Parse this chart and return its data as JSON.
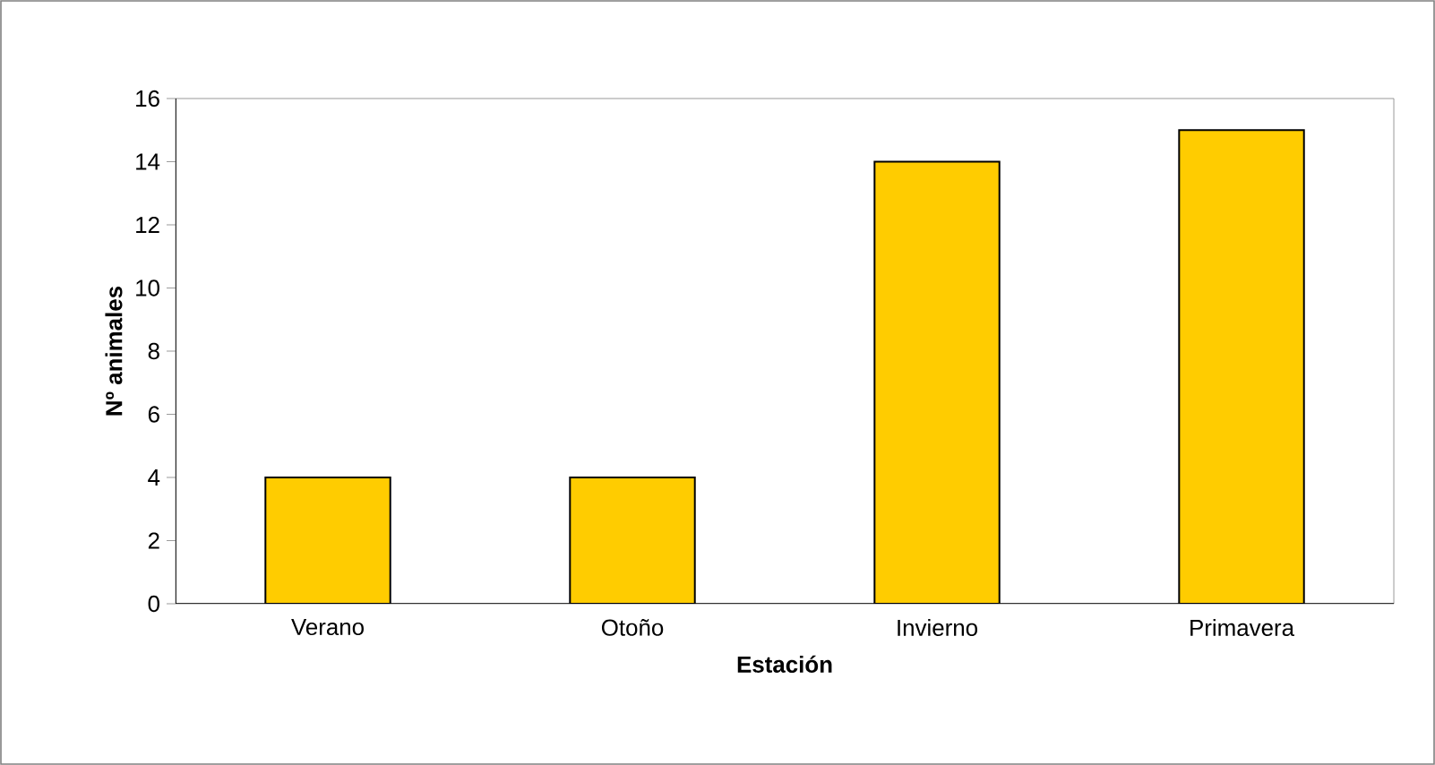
{
  "chart_data": {
    "type": "bar",
    "xlabel": "Estación",
    "ylabel": "Nº animales",
    "categories": [
      "Verano",
      "Otoño",
      "Invierno",
      "Primavera"
    ],
    "values": [
      4,
      4,
      14,
      15
    ],
    "color": "#ffcc00",
    "ylim": [
      0,
      16
    ],
    "yticks": [
      0,
      2,
      4,
      6,
      8,
      10,
      12,
      14,
      16
    ],
    "grid": false
  }
}
